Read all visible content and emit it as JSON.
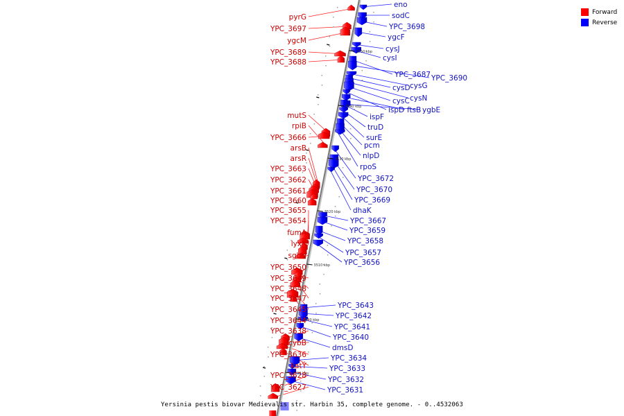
{
  "legend": {
    "forward": {
      "label": "Forward",
      "color": "#ff0000"
    },
    "reverse": {
      "label": "Reverse",
      "color": "#0000ff"
    }
  },
  "caption": "Yersinia pestis biovar Medievalis str. Harbin 35, complete genome. - 0..4532063",
  "axis": {
    "from_kbp": 3485,
    "to_kbp": 3556,
    "ticks": [
      "3550 kbp",
      "3540 kbp",
      "3530 kbp",
      "3520 kbp",
      "3510 kbp",
      "3500 kbp",
      "3490 kbp"
    ]
  },
  "forward_genes": [
    "pyrG",
    "YPC_3697",
    "ygcM",
    "YPC_3689",
    "YPC_3688",
    "mutS",
    "rpiB",
    "YPC_3666",
    "arsB",
    "arsR",
    "YPC_3663",
    "YPC_3662",
    "YPC_3661",
    "YPC_3660",
    "YPC_3655",
    "YPC_3654",
    "fumA",
    "lyxK",
    "sgbU",
    "YPC_3650",
    "YPC_3649",
    "YPC_3648",
    "YPC_3647",
    "YPC_3645",
    "YPC_3644",
    "YPC_3638",
    "cybB",
    "YPC_3636",
    "katY",
    "YPC_3628",
    "YPC_3627"
  ],
  "reverse_genes": [
    "eno",
    "sodC",
    "YPC_3698",
    "ygcF",
    "cysJ",
    "cysI",
    "YPC_3687",
    "YPC_3690",
    "cysG",
    "cysD",
    "cysN",
    "cysC",
    "ispD",
    "ftsB",
    "ygbE",
    "ispF",
    "truD",
    "surE",
    "pcm",
    "nlpD",
    "rpoS",
    "YPC_3672",
    "YPC_3670",
    "YPC_3669",
    "dhaK",
    "YPC_3667",
    "YPC_3659",
    "YPC_3658",
    "YPC_3657",
    "YPC_3656",
    "YPC_3643",
    "YPC_3642",
    "YPC_3641",
    "YPC_3640",
    "dmsD",
    "YPC_3634",
    "YPC_3633",
    "YPC_3632",
    "YPC_3631"
  ]
}
